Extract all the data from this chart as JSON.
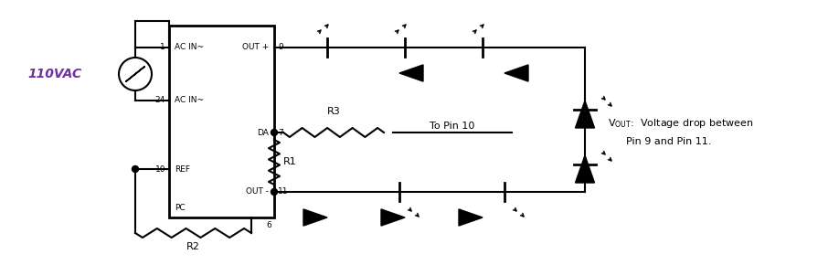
{
  "bg_color": "#ffffff",
  "line_color": "#000000",
  "vac_label_color": "#7030a0",
  "vac_label": "110VAC",
  "r3_label": "R3",
  "r1_label": "R1",
  "r2_label": "R2",
  "to_pin10": "To Pin 10",
  "fig_w": 9.18,
  "fig_h": 2.9,
  "dpi": 100
}
